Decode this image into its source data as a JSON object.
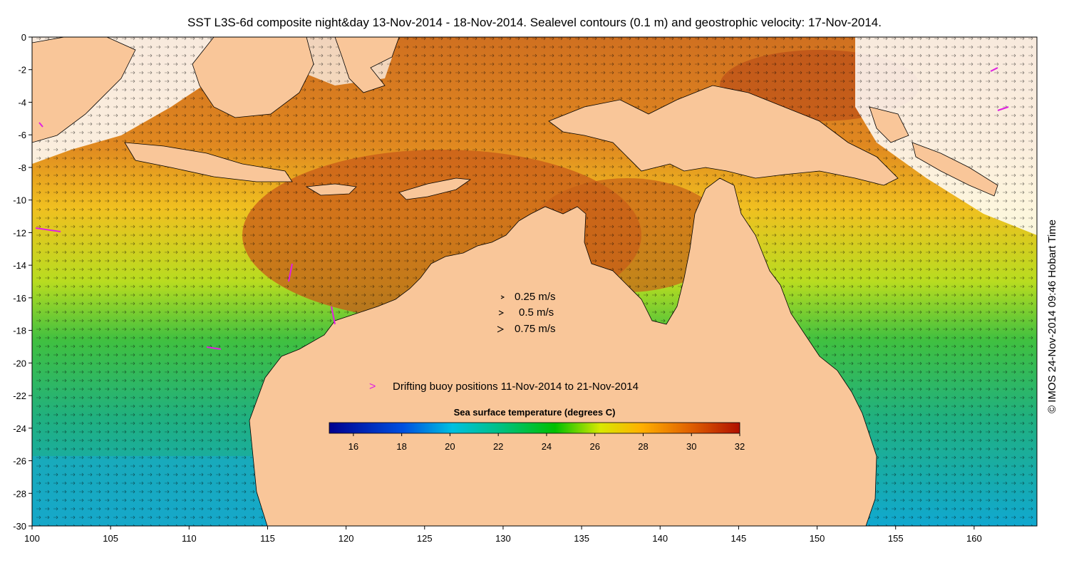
{
  "title": "SST L3S-6d composite night&day 13-Nov-2014 - 18-Nov-2014. Sealevel contours (0.1 m) and geostrophic velocity: 17-Nov-2014.",
  "credit": "© IMOS 24-Nov-2014 09:46 Hobart Time",
  "map": {
    "lon_range": [
      100,
      164
    ],
    "lat_range": [
      -30,
      0
    ],
    "x_ticks": [
      "100",
      "105",
      "110",
      "115",
      "120",
      "125",
      "130",
      "135",
      "140",
      "145",
      "150",
      "155",
      "160"
    ],
    "y_ticks": [
      "0",
      "-2",
      "-4",
      "-6",
      "-8",
      "-10",
      "-12",
      "-14",
      "-16",
      "-18",
      "-20",
      "-22",
      "-24",
      "-26",
      "-28",
      "-30"
    ],
    "land_color": "#f9c699"
  },
  "velocity_legend": {
    "items": [
      "0.25 m/s",
      "0.5 m/s",
      "0.75 m/s"
    ]
  },
  "buoy_legend": {
    "marker": ">",
    "label": "Drifting buoy positions 11-Nov-2014 to 21-Nov-2014",
    "color": "#e020e0"
  },
  "colorbar": {
    "label": "Sea surface temperature (degrees C)",
    "ticks": [
      "16",
      "18",
      "20",
      "22",
      "24",
      "26",
      "28",
      "30",
      "32"
    ],
    "colors": [
      "#00008f",
      "#0060ff",
      "#00ffff",
      "#00c060",
      "#00c000",
      "#e8e800",
      "#ffa000",
      "#e06000",
      "#b00000"
    ]
  }
}
